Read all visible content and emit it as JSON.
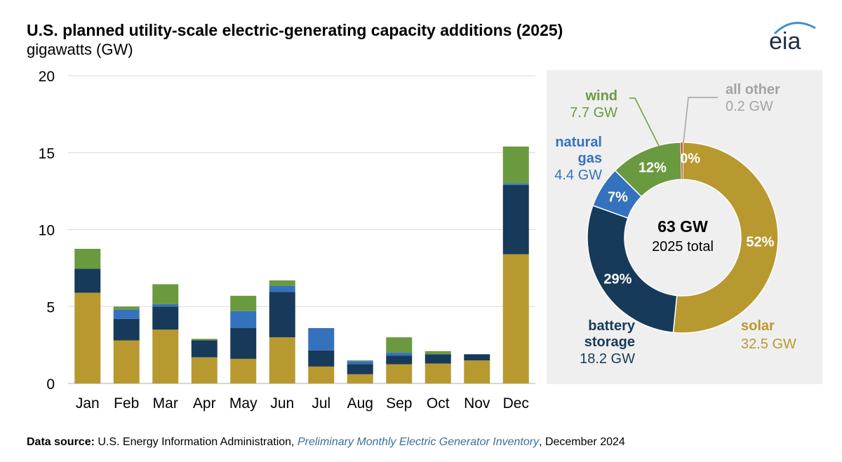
{
  "header": {
    "title": "U.S. planned utility-scale electric-generating capacity additions (2025)",
    "subtitle": "gigawatts (GW)",
    "logo_text": "eia"
  },
  "colors": {
    "solar": "#b8992f",
    "battery": "#173a5a",
    "gas": "#3572bd",
    "wind": "#6a9a3f",
    "other": "#c0392b",
    "other_label": "#a3a3a3",
    "panel_bg": "#efefef"
  },
  "chart_data": [
    {
      "type": "bar",
      "stacked": true,
      "categories": [
        "Jan",
        "Feb",
        "Mar",
        "Apr",
        "May",
        "Jun",
        "Jul",
        "Aug",
        "Sep",
        "Oct",
        "Nov",
        "Dec"
      ],
      "series": [
        {
          "key": "solar",
          "values": [
            5.9,
            2.8,
            3.5,
            1.7,
            1.6,
            3.0,
            1.1,
            0.6,
            1.25,
            1.3,
            1.5,
            8.4
          ]
        },
        {
          "key": "battery",
          "values": [
            1.55,
            1.4,
            1.5,
            1.1,
            2.0,
            2.95,
            1.05,
            0.65,
            0.55,
            0.6,
            0.4,
            4.5
          ]
        },
        {
          "key": "gas",
          "values": [
            0.0,
            0.6,
            0.15,
            0.0,
            1.1,
            0.4,
            1.45,
            0.2,
            0.2,
            0.0,
            0.0,
            0.1
          ]
        },
        {
          "key": "wind",
          "values": [
            1.3,
            0.2,
            1.3,
            0.1,
            1.0,
            0.35,
            0.0,
            0.05,
            1.0,
            0.2,
            0.0,
            2.4
          ]
        }
      ],
      "ylim": [
        0,
        20
      ],
      "yticks": [
        0,
        5,
        10,
        15,
        20
      ],
      "grid": true
    },
    {
      "type": "pie",
      "donut": true,
      "center_value": "63 GW",
      "center_label": "2025 total",
      "slices": [
        {
          "key": "solar",
          "value": 32.5,
          "percent": "52%",
          "name": "solar",
          "name_line2": "",
          "label": "32.5 GW"
        },
        {
          "key": "battery",
          "value": 18.2,
          "percent": "29%",
          "name": "battery",
          "name_line2": "storage",
          "label": "18.2 GW"
        },
        {
          "key": "gas",
          "value": 4.4,
          "percent": "7%",
          "name": "natural",
          "name_line2": "gas",
          "label": "4.4 GW"
        },
        {
          "key": "wind",
          "value": 7.7,
          "percent": "12%",
          "name": "wind",
          "name_line2": "",
          "label": "7.7 GW"
        },
        {
          "key": "other",
          "value": 0.2,
          "percent": "0%",
          "name": "all other",
          "name_line2": "",
          "label": "0.2 GW"
        }
      ]
    }
  ],
  "footer": {
    "label": "Data source:",
    "source": " U.S. Energy Information Administration, ",
    "publication": "Preliminary Monthly Electric Generator Inventory",
    "date": ", December 2024"
  }
}
